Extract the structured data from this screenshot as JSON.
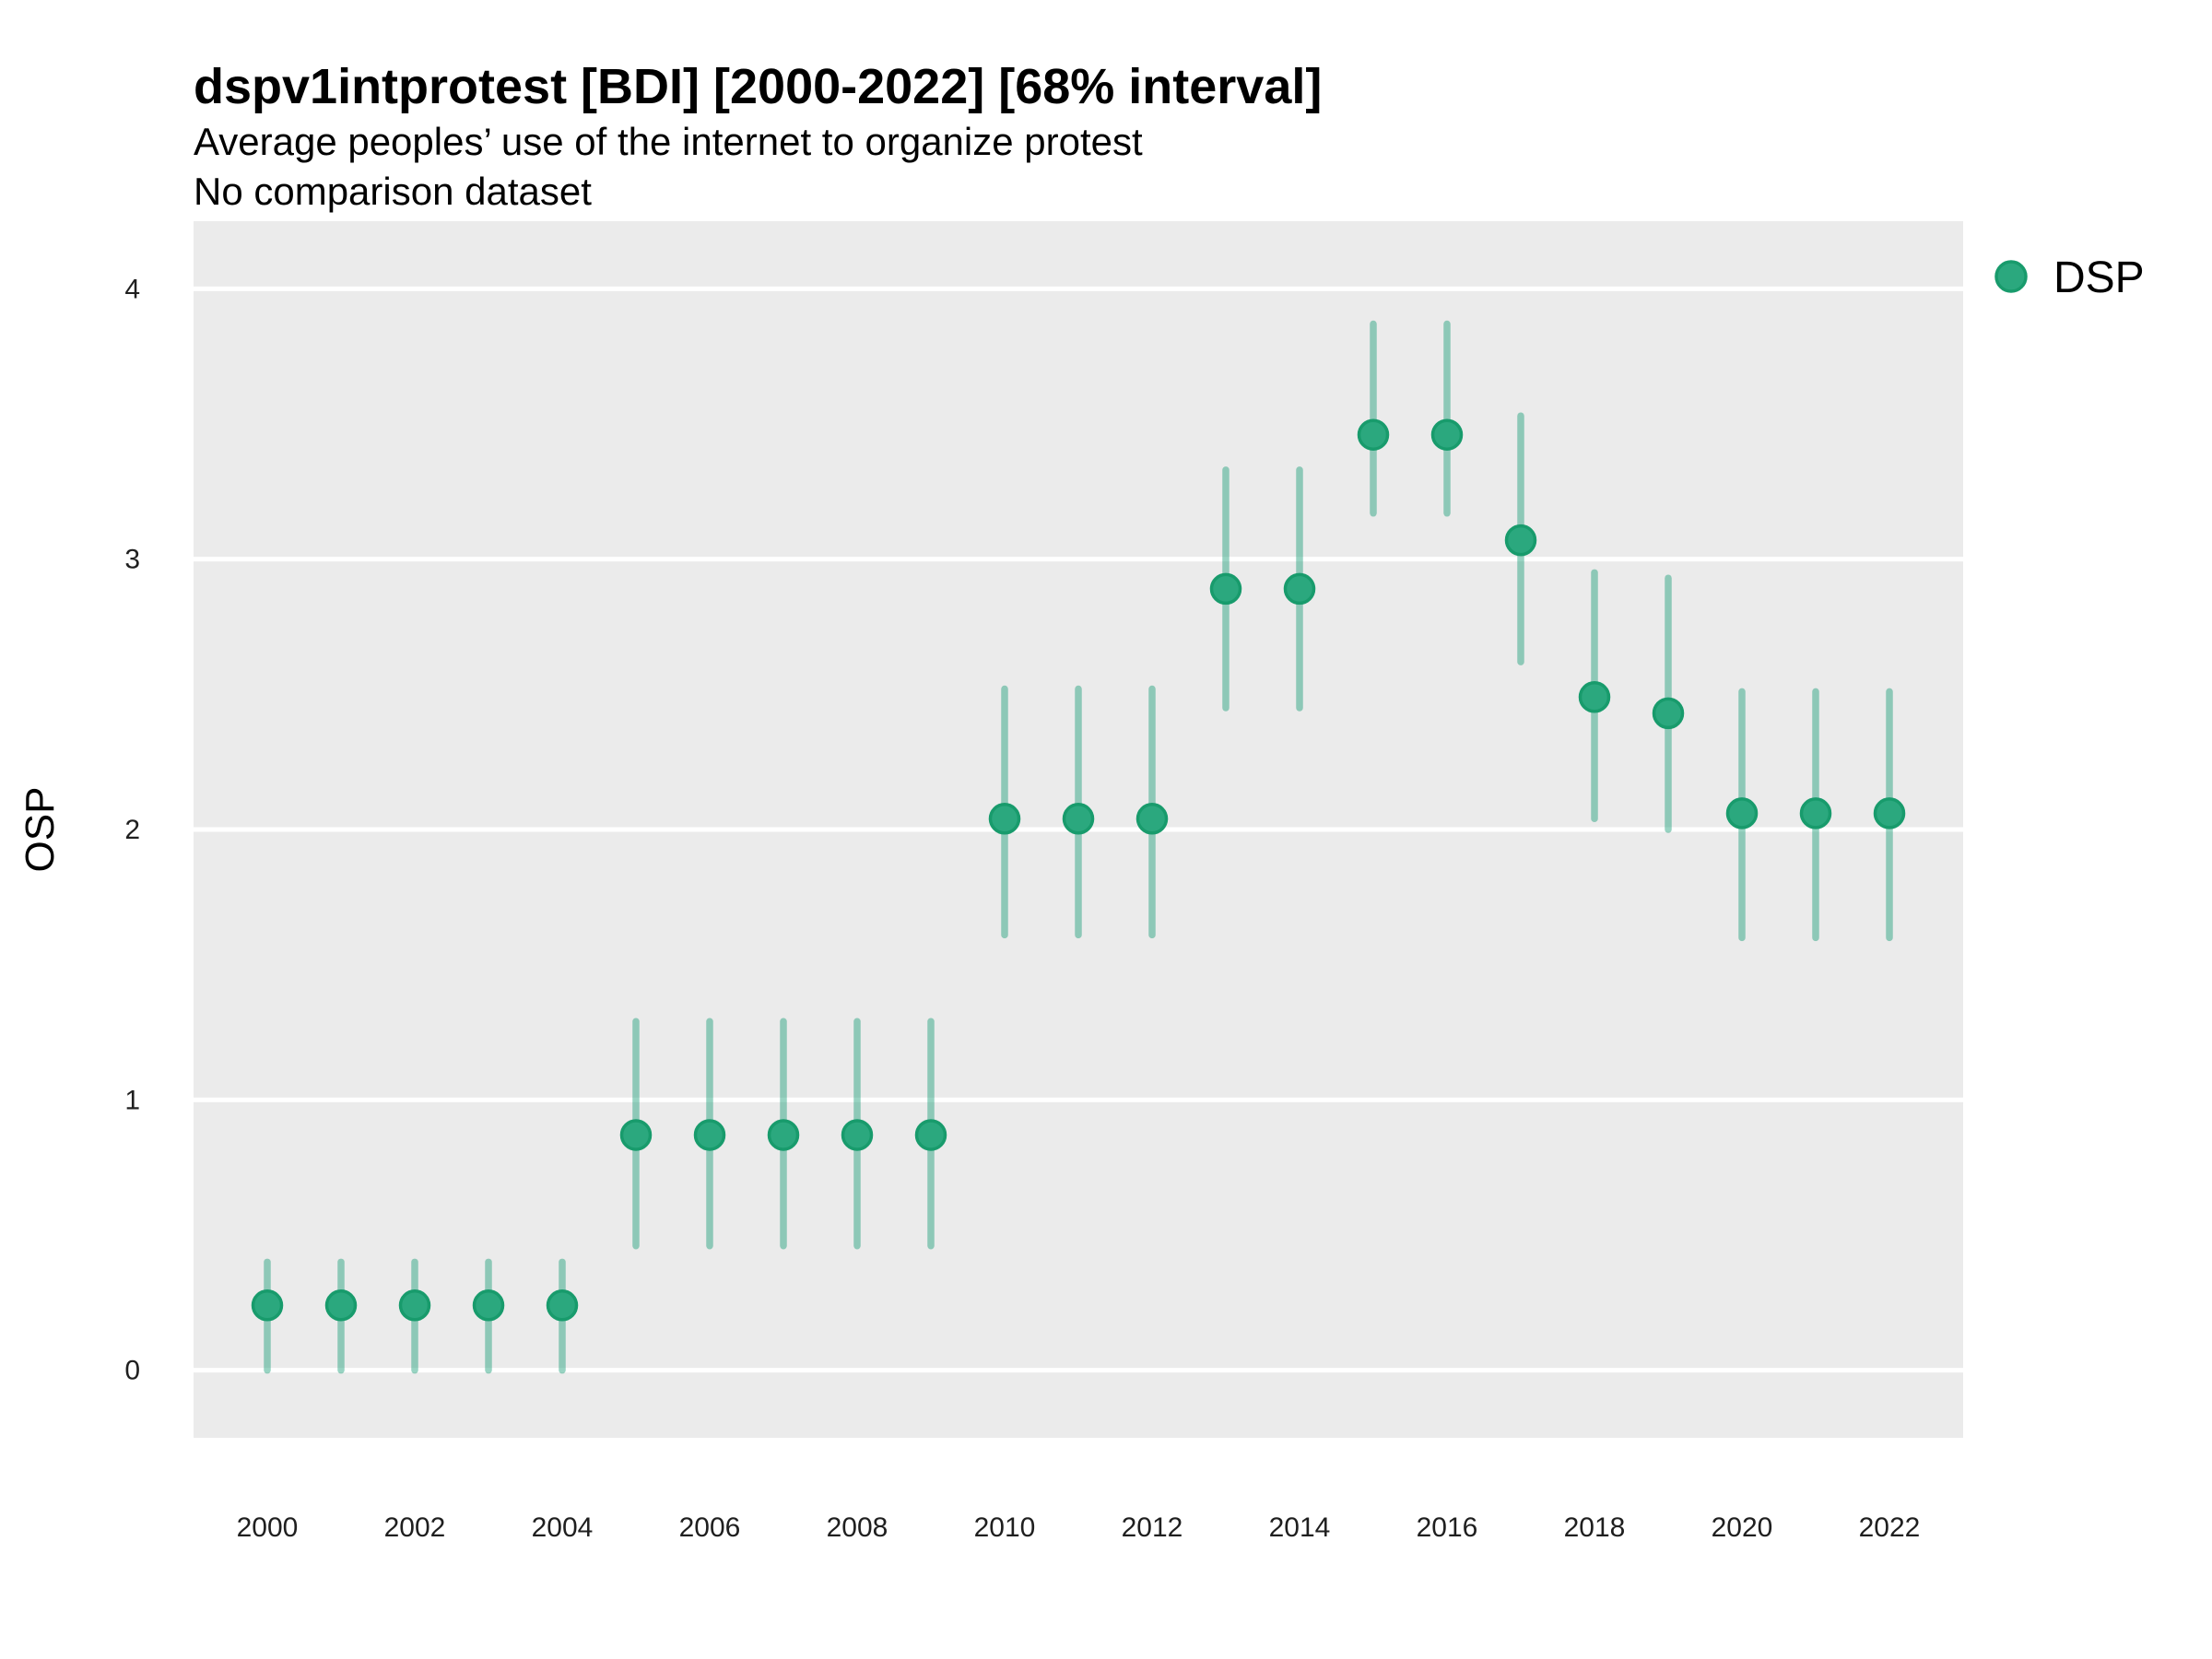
{
  "header": {
    "title": "dspv1intprotest [BDI] [2000-2022] [68% interval]",
    "subtitle": "Average peoples’ use of the internet to organize protest",
    "note": "No comparison dataset"
  },
  "chart_data": {
    "type": "scatter",
    "subtype": "pointrange",
    "title": "dspv1intprotest [BDI] [2000-2022] [68% interval]",
    "subtitle": "Average peoples’ use of the internet to organize protest",
    "note": "No comparison dataset",
    "xlabel": "",
    "ylabel": "OSP",
    "xlim": [
      1999,
      2023
    ],
    "ylim": [
      -0.25,
      4.25
    ],
    "x_ticks": [
      2000,
      2002,
      2004,
      2006,
      2008,
      2010,
      2012,
      2014,
      2016,
      2018,
      2020,
      2022
    ],
    "y_ticks": [
      0,
      1,
      2,
      3,
      4
    ],
    "grid": "major-horizontal-only",
    "legend": {
      "label": "DSP",
      "position": "right-top"
    },
    "series": [
      {
        "name": "DSP",
        "x": [
          2000,
          2001,
          2002,
          2003,
          2004,
          2005,
          2006,
          2007,
          2008,
          2009,
          2010,
          2011,
          2012,
          2013,
          2014,
          2015,
          2016,
          2017,
          2018,
          2019,
          2020,
          2021,
          2022
        ],
        "y": [
          0.24,
          0.24,
          0.24,
          0.24,
          0.24,
          0.87,
          0.87,
          0.87,
          0.87,
          0.87,
          2.04,
          2.04,
          2.04,
          2.89,
          2.89,
          3.46,
          3.46,
          3.07,
          2.49,
          2.43,
          2.06,
          2.06,
          2.06
        ],
        "y_low": [
          0.0,
          0.0,
          0.0,
          0.0,
          0.0,
          0.46,
          0.46,
          0.46,
          0.46,
          0.46,
          1.61,
          1.61,
          1.61,
          2.45,
          2.45,
          3.17,
          3.17,
          2.62,
          2.04,
          2.0,
          1.6,
          1.6,
          1.6
        ],
        "y_high": [
          0.4,
          0.4,
          0.4,
          0.4,
          0.4,
          1.29,
          1.29,
          1.29,
          1.29,
          1.29,
          2.52,
          2.52,
          2.52,
          3.33,
          3.33,
          3.87,
          3.87,
          3.53,
          2.95,
          2.93,
          2.51,
          2.51,
          2.51
        ]
      }
    ],
    "colors": {
      "accent": "#1B9E77",
      "point_fill": "#2BA87E",
      "point_stroke": "#189B6C",
      "interval": "rgba(27,158,119,0.45)",
      "panel_bg": "#EBEBEB",
      "gridline": "#FFFFFF",
      "text": "#000000",
      "tick_text": "#1F1F1F"
    }
  }
}
